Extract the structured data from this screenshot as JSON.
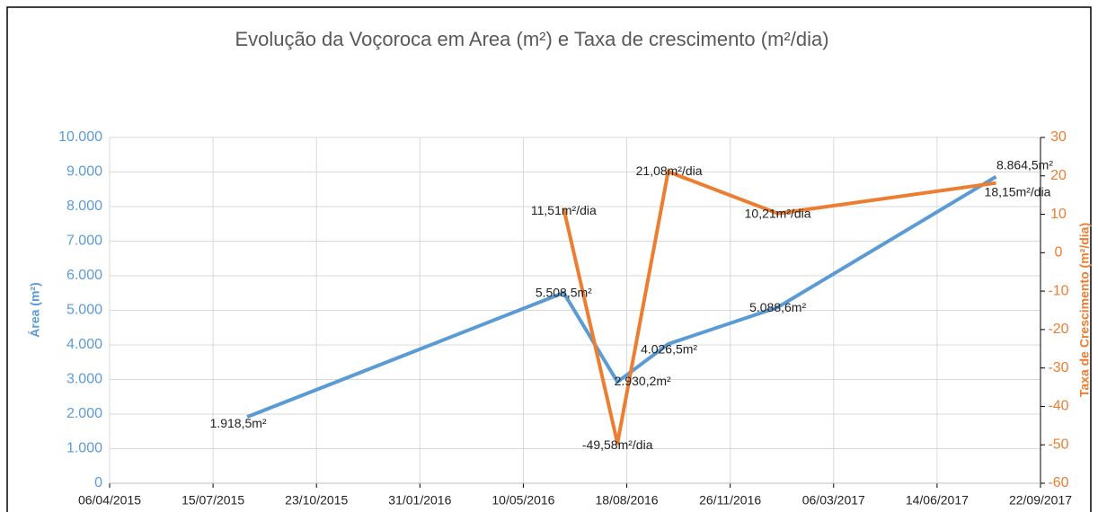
{
  "chart_data": {
    "type": "line",
    "title": "Evolução  da Voçoroca em Area (m²) e Taxa de crescimento (m²/dia)",
    "y_label": "Área (m²)",
    "y2_label": "Taxa de Crescimento (m²/dia)",
    "x": [
      "17/08/2015",
      "18/06/2016",
      "09/08/2016",
      "27/09/2016",
      "11/01/2017",
      "10/08/2017"
    ],
    "xlim": [
      "06/04/2015",
      "22/09/2017"
    ],
    "xticks": [
      "06/04/2015",
      "15/07/2015",
      "23/10/2015",
      "31/01/2016",
      "10/05/2016",
      "18/08/2016",
      "26/11/2016",
      "06/03/2017",
      "14/06/2017",
      "22/09/2017"
    ],
    "ylim": [
      0,
      10000
    ],
    "yticks": [
      0,
      {
        "value": 1000,
        "label": "1.000"
      },
      {
        "value": 2000,
        "label": "2.000"
      },
      {
        "value": 3000,
        "label": "3.000"
      },
      {
        "value": 4000,
        "label": "4.000"
      },
      {
        "value": 5000,
        "label": "5.000"
      },
      {
        "value": 6000,
        "label": "6.000"
      },
      {
        "value": 7000,
        "label": "7.000"
      },
      {
        "value": 8000,
        "label": "8.000"
      },
      {
        "value": 9000,
        "label": "9.000"
      },
      {
        "value": 10000,
        "label": "10.000"
      }
    ],
    "y2lim": [
      -60,
      30
    ],
    "y2ticks": [
      -60,
      -50,
      -40,
      -30,
      -20,
      -10,
      0,
      10,
      20,
      30
    ],
    "grid": true,
    "series": [
      {
        "name": "Área",
        "color": "#5b9bd5",
        "values": [
          1918.5,
          5508.5,
          2930.2,
          4026.5,
          5088.6,
          8864.5
        ],
        "value_labels": [
          "1.918,5m²",
          "5.508,5m²",
          "2.930,2m²",
          "4.026,5m²",
          "5.088,6m²",
          "8.864,5m²"
        ]
      },
      {
        "name": "Taxa de crescimento",
        "color": "#ed7d31",
        "axis": "y2",
        "values": [
          null,
          11.51,
          -49.58,
          21.08,
          10.21,
          18.15
        ],
        "value_labels": [
          null,
          "11,51m²/dia",
          "-49,58m²/dia",
          "21,08m²/dia",
          "10,21m²/dia",
          "18,15m²/dia"
        ]
      }
    ]
  }
}
